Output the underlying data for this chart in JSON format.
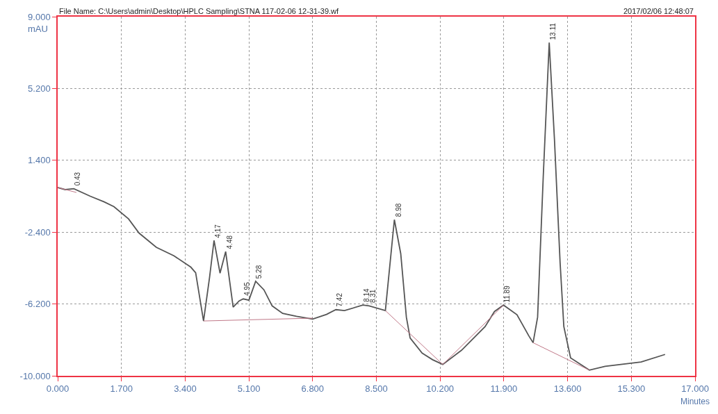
{
  "chart_data": {
    "type": "line",
    "title": "File Name: C:\\Users\\admin\\Desktop\\HPLC Sampling\\STNA 117-02-06 12-31-39.wf",
    "subtitle": "2017/02/06 12:48:07",
    "xlabel": "Minutes",
    "ylabel": "mAU",
    "series": [
      {
        "color": "#555555",
        "x": [
          0,
          0.2,
          0.43,
          0.87,
          1.24,
          1.5,
          1.89,
          2.17,
          2.63,
          3.1,
          3.55,
          3.68,
          3.89,
          4.05,
          4.17,
          4.33,
          4.48,
          4.68,
          4.84,
          4.95,
          5.1,
          5.28,
          5.5,
          5.72,
          6.0,
          6.37,
          6.8,
          7.17,
          7.42,
          7.65,
          8.14,
          8.31,
          8.74,
          8.98,
          9.15,
          9.3,
          9.4,
          9.72,
          10.0,
          10.27,
          10.77,
          11.4,
          11.65,
          11.89,
          12.25,
          12.57,
          12.68,
          12.8,
          12.95,
          13.11,
          13.25,
          13.4,
          13.5,
          13.68,
          14.18,
          14.6,
          15.56,
          16.2
        ],
        "values": [
          -0.04,
          -0.15,
          -0.1,
          -0.5,
          -0.8,
          -1.05,
          -1.7,
          -2.45,
          -3.2,
          -3.65,
          -4.25,
          -4.55,
          -7.1,
          -4.8,
          -2.84,
          -4.57,
          -3.43,
          -6.37,
          -6.04,
          -5.93,
          -6.0,
          -5.0,
          -5.45,
          -6.3,
          -6.7,
          -6.85,
          -7.0,
          -6.75,
          -6.5,
          -6.55,
          -6.26,
          -6.3,
          -6.55,
          -1.74,
          -3.54,
          -6.9,
          -8.0,
          -8.8,
          -9.15,
          -9.4,
          -8.65,
          -7.4,
          -6.6,
          -6.26,
          -6.77,
          -7.9,
          -8.25,
          -6.9,
          0.5,
          7.63,
          2.5,
          -4.0,
          -7.4,
          -9.05,
          -9.7,
          -9.5,
          -9.27,
          -8.87
        ]
      },
      {
        "color": "#c07888",
        "x": [
          0,
          0.5,
          null,
          3.89,
          6.8,
          null,
          8.74,
          10.27,
          11.89,
          null,
          12.68,
          14.18
        ],
        "values": [
          -0.04,
          -0.3,
          null,
          -7.1,
          -6.95,
          null,
          -6.55,
          -9.4,
          -6.26,
          null,
          -8.25,
          -9.7
        ]
      }
    ],
    "annotations": [
      {
        "text": "0.43",
        "x": 0.43,
        "y": -0.1
      },
      {
        "text": "4.17",
        "x": 4.17,
        "y": -2.84
      },
      {
        "text": "4.48",
        "x": 4.48,
        "y": -3.43
      },
      {
        "text": "4.95",
        "x": 4.95,
        "y": -5.93
      },
      {
        "text": "5.28",
        "x": 5.28,
        "y": -5.0
      },
      {
        "text": "7.42",
        "x": 7.42,
        "y": -6.5
      },
      {
        "text": "8.14",
        "x": 8.14,
        "y": -6.26
      },
      {
        "text": "8.31",
        "x": 8.31,
        "y": -6.3
      },
      {
        "text": "8.98",
        "x": 8.98,
        "y": -1.74
      },
      {
        "text": "11.89",
        "x": 11.89,
        "y": -6.26
      },
      {
        "text": "13.11",
        "x": 13.11,
        "y": 7.63
      }
    ],
    "xlim": [
      0,
      17
    ],
    "xticks": [
      {
        "value": 0,
        "label": "0.000"
      },
      {
        "value": 1.7,
        "label": "1.700"
      },
      {
        "value": 3.4,
        "label": "3.400"
      },
      {
        "value": 5.1,
        "label": "5.100"
      },
      {
        "value": 6.8,
        "label": "6.800"
      },
      {
        "value": 8.5,
        "label": "8.500"
      },
      {
        "value": 10.2,
        "label": "10.200"
      },
      {
        "value": 11.9,
        "label": "11.900"
      },
      {
        "value": 13.6,
        "label": "13.600"
      },
      {
        "value": 15.3,
        "label": "15.300"
      },
      {
        "value": 17,
        "label": "17.000"
      }
    ],
    "ylim": [
      -10,
      9
    ],
    "yticks": [
      {
        "value": -10,
        "label": "-10.000"
      },
      {
        "value": -6.2,
        "label": "-6.200"
      },
      {
        "value": -2.4,
        "label": "-2.400"
      },
      {
        "value": 1.4,
        "label": "1.400"
      },
      {
        "value": 5.2,
        "label": "5.200"
      },
      {
        "value": 9,
        "label": "9.000"
      }
    ],
    "grid": true,
    "line_style": "solid",
    "marker": "none"
  }
}
